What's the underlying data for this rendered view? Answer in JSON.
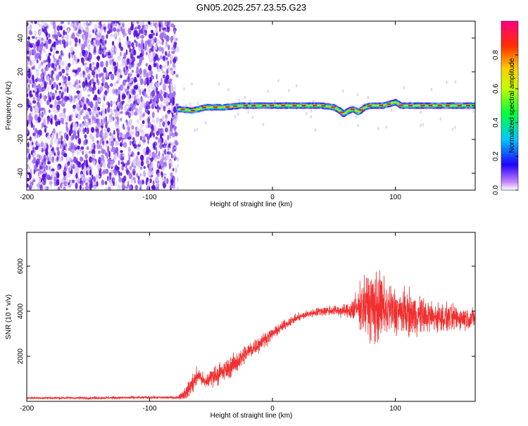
{
  "title": "GN05.2025.257.23.55.G23",
  "colors": {
    "snr_line": "#f03030",
    "axis": "#000000",
    "scatter_dense": "#5a10e0",
    "scatter_light": "#a070f0",
    "scatter_faint": "#d8c8f8"
  },
  "chart_data": [
    {
      "type": "heatmap",
      "name": "spectrogram",
      "xlabel": "Height of straight line (km)",
      "ylabel": "Frequency (Hz)",
      "xlim": [
        -200,
        165
      ],
      "ylim": [
        -50,
        50
      ],
      "xticks": [
        -200,
        -100,
        0,
        100
      ],
      "yticks": [
        -40,
        -20,
        0,
        20,
        40
      ],
      "colorbar": {
        "label": "Normalized spectral amplitude",
        "range": [
          0,
          1
        ],
        "ticks": [
          "0.0",
          "0.2",
          "0.4",
          "0.6",
          "0.8"
        ]
      },
      "signal_track": {
        "start_height_km": -77,
        "points": [
          [
            -77,
            -2
          ],
          [
            -65,
            -3
          ],
          [
            -55,
            -1
          ],
          [
            -40,
            -1
          ],
          [
            -25,
            0
          ],
          [
            -10,
            0
          ],
          [
            0,
            0
          ],
          [
            10,
            0
          ],
          [
            25,
            0
          ],
          [
            40,
            0
          ],
          [
            50,
            -1
          ],
          [
            55,
            -3
          ],
          [
            58,
            -5
          ],
          [
            62,
            -3
          ],
          [
            66,
            -2
          ],
          [
            70,
            -4
          ],
          [
            75,
            -1
          ],
          [
            80,
            0
          ],
          [
            90,
            0
          ],
          [
            95,
            1
          ],
          [
            100,
            2
          ],
          [
            105,
            0
          ],
          [
            115,
            0
          ],
          [
            125,
            0
          ],
          [
            140,
            0
          ],
          [
            155,
            0
          ],
          [
            165,
            0
          ]
        ]
      }
    },
    {
      "type": "line",
      "name": "snr",
      "xlabel": "Height of straight line (km)",
      "ylabel": "SNR (10 * v/v)",
      "xlim": [
        -200,
        165
      ],
      "ylim": [
        0,
        7500
      ],
      "xticks": [
        -200,
        -100,
        0,
        100
      ],
      "yticks": [
        2000,
        4000,
        6000
      ],
      "envelope": {
        "x": [
          -200,
          -150,
          -100,
          -77,
          -70,
          -65,
          -60,
          -55,
          -50,
          -40,
          -30,
          -20,
          -10,
          0,
          10,
          20,
          30,
          40,
          50,
          60,
          70,
          75,
          80,
          85,
          90,
          100,
          110,
          120,
          130,
          140,
          150,
          165
        ],
        "mean": [
          150,
          150,
          170,
          170,
          400,
          800,
          1200,
          800,
          1100,
          1300,
          1700,
          2200,
          2600,
          3000,
          3400,
          3700,
          3900,
          4000,
          4050,
          4000,
          4150,
          4300,
          4200,
          4150,
          4100,
          4000,
          3900,
          3800,
          3750,
          3700,
          3700,
          3700
        ],
        "amp": [
          80,
          90,
          90,
          90,
          450,
          700,
          500,
          450,
          600,
          700,
          650,
          600,
          500,
          350,
          300,
          250,
          250,
          300,
          350,
          400,
          1200,
          1800,
          2200,
          2500,
          2000,
          1500,
          1400,
          1200,
          1000,
          900,
          800,
          600
        ]
      }
    }
  ]
}
